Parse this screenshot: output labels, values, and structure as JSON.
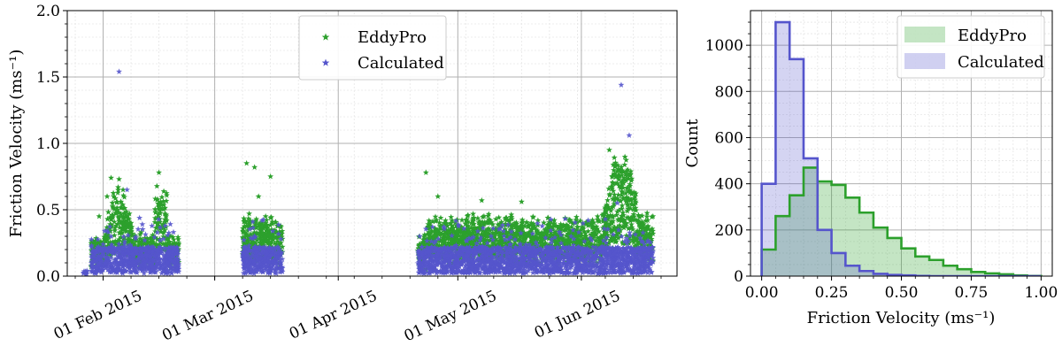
{
  "colors": {
    "eddypro": "#2ca02c",
    "calculated": "#5555cc",
    "grid_major": "#b0b0b0",
    "grid_minor": "#e6e6e6"
  },
  "chart_data": [
    {
      "type": "scatter",
      "marker": "star",
      "xlabel": "",
      "ylabel": "Friction Velocity (ms⁻¹)",
      "ylim": [
        0,
        2.0
      ],
      "yticks": [
        "0.0",
        "0.5",
        "1.0",
        "1.5",
        "2.0"
      ],
      "xlim": [
        "2015-01-23",
        "2015-06-25"
      ],
      "xticks": [
        {
          "date": "2015-02-01",
          "label": "01 Feb 2015"
        },
        {
          "date": "2015-03-01",
          "label": "01 Mar 2015"
        },
        {
          "date": "2015-04-01",
          "label": "01 Apr 2015"
        },
        {
          "date": "2015-05-01",
          "label": "01 May 2015"
        },
        {
          "date": "2015-06-01",
          "label": "01 Jun 2015"
        }
      ],
      "grid": true,
      "legend": "top-center",
      "data_periods": [
        [
          "2015-01-29",
          "2015-02-20"
        ],
        [
          "2015-03-08",
          "2015-03-18"
        ],
        [
          "2015-04-21",
          "2015-06-19"
        ]
      ],
      "series": [
        {
          "name": "EddyPro",
          "description_points": [
            {
              "x": "2015-01-31",
              "y": 0.45
            },
            {
              "x": "2015-02-02",
              "y": 0.6
            },
            {
              "x": "2015-02-03",
              "y": 0.74
            },
            {
              "x": "2015-02-05",
              "y": 0.73
            },
            {
              "x": "2015-02-06",
              "y": 0.65
            },
            {
              "x": "2015-02-08",
              "y": 0.4
            },
            {
              "x": "2015-02-11",
              "y": 0.25
            },
            {
              "x": "2015-02-15",
              "y": 0.78
            },
            {
              "x": "2015-02-18",
              "y": 0.3
            },
            {
              "x": "2015-03-09",
              "y": 0.85
            },
            {
              "x": "2015-03-11",
              "y": 0.82
            },
            {
              "x": "2015-03-12",
              "y": 0.6
            },
            {
              "x": "2015-03-15",
              "y": 0.75
            },
            {
              "x": "2015-04-23",
              "y": 0.78
            },
            {
              "x": "2015-04-26",
              "y": 0.6
            },
            {
              "x": "2015-05-07",
              "y": 0.57
            },
            {
              "x": "2015-05-17",
              "y": 0.56
            },
            {
              "x": "2015-06-08",
              "y": 0.95
            },
            {
              "x": "2015-06-10",
              "y": 0.7
            }
          ]
        },
        {
          "name": "Calculated",
          "description_points": [
            {
              "x": "2015-02-05",
              "y": 1.54
            },
            {
              "x": "2015-06-11",
              "y": 1.44
            },
            {
              "x": "2015-06-13",
              "y": 1.06
            },
            {
              "x": "2015-02-07",
              "y": 0.65
            },
            {
              "x": "2015-06-10",
              "y": 0.55
            }
          ]
        }
      ]
    },
    {
      "type": "histogram",
      "xlabel": "Friction Velocity (ms⁻¹)",
      "ylabel": "Count",
      "xlim": [
        -0.04,
        1.04
      ],
      "ylim": [
        0,
        1150
      ],
      "xticks": [
        "0.00",
        "0.25",
        "0.50",
        "0.75",
        "1.00"
      ],
      "yticks": [
        "0",
        "200",
        "400",
        "600",
        "800",
        "1000"
      ],
      "bin_edges": [
        0.0,
        0.05,
        0.1,
        0.15,
        0.2,
        0.25,
        0.3,
        0.35,
        0.4,
        0.45,
        0.5,
        0.55,
        0.6,
        0.65,
        0.7,
        0.75,
        0.8,
        0.85,
        0.9,
        0.95,
        1.0
      ],
      "grid": true,
      "legend": "top-right",
      "series": [
        {
          "name": "EddyPro",
          "values": [
            115,
            260,
            350,
            470,
            410,
            395,
            340,
            275,
            210,
            165,
            120,
            85,
            70,
            45,
            30,
            18,
            12,
            8,
            3,
            1
          ]
        },
        {
          "name": "Calculated",
          "values": [
            400,
            1100,
            940,
            510,
            200,
            100,
            45,
            22,
            10,
            5,
            3,
            1,
            0,
            0,
            0,
            0,
            0,
            0,
            0,
            0
          ]
        }
      ]
    }
  ]
}
